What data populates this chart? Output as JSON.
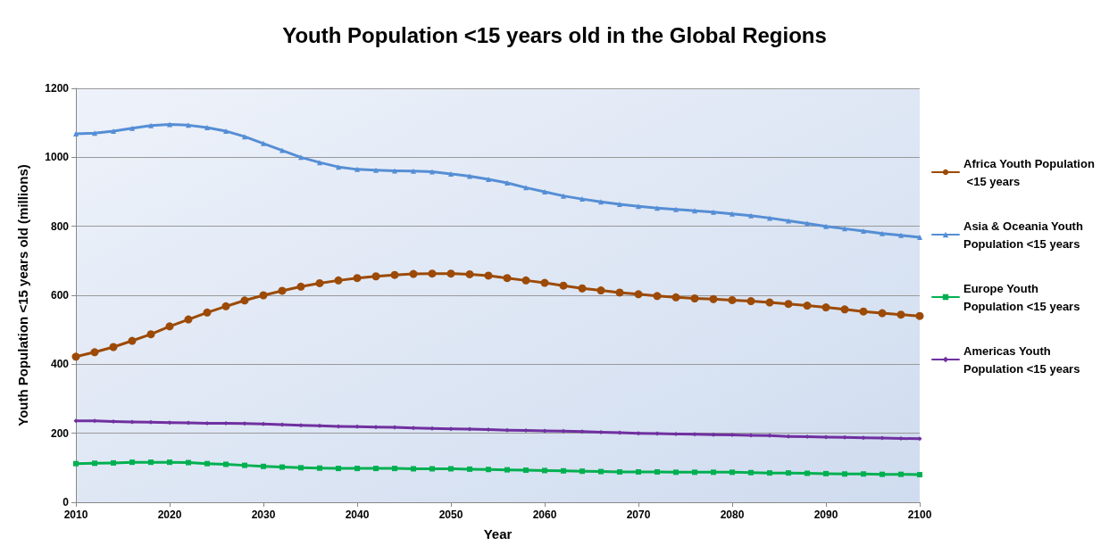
{
  "chart_data": {
    "type": "line",
    "title": "Youth Population <15 years old in the Global Regions",
    "xlabel": "Year",
    "ylabel": "Youth Population <15 years old (millions)",
    "x": [
      2010,
      2012,
      2014,
      2016,
      2018,
      2020,
      2022,
      2024,
      2026,
      2028,
      2030,
      2032,
      2034,
      2036,
      2038,
      2040,
      2042,
      2044,
      2046,
      2048,
      2050,
      2052,
      2054,
      2056,
      2058,
      2060,
      2062,
      2064,
      2066,
      2068,
      2070,
      2072,
      2074,
      2076,
      2078,
      2080,
      2082,
      2084,
      2086,
      2088,
      2090,
      2092,
      2094,
      2096,
      2098,
      2100
    ],
    "xlim": [
      2010,
      2100
    ],
    "xticks": [
      2010,
      2020,
      2030,
      2040,
      2050,
      2060,
      2070,
      2080,
      2090,
      2100
    ],
    "ylim": [
      0,
      1200
    ],
    "yticks": [
      0,
      200,
      400,
      600,
      800,
      1000,
      1200
    ],
    "grid": "y",
    "legend": "right",
    "line_style": "solid",
    "series": [
      {
        "name": "Africa Youth Population <15 years",
        "color": "#9c4a06",
        "marker": "circle",
        "values": [
          422,
          435,
          450,
          468,
          487,
          510,
          530,
          550,
          568,
          585,
          600,
          613,
          625,
          635,
          643,
          650,
          655,
          659,
          662,
          663,
          663,
          661,
          657,
          650,
          643,
          636,
          628,
          620,
          614,
          608,
          603,
          598,
          594,
          591,
          589,
          586,
          583,
          579,
          575,
          570,
          565,
          559,
          553,
          548,
          544,
          540
        ]
      },
      {
        "name": "Asia & Oceania Youth Population <15 years",
        "color": "#558ed5",
        "marker": "triangle",
        "values": [
          1068,
          1070,
          1076,
          1084,
          1092,
          1095,
          1093,
          1086,
          1076,
          1060,
          1040,
          1020,
          1000,
          985,
          972,
          965,
          963,
          961,
          960,
          958,
          952,
          945,
          936,
          926,
          912,
          900,
          888,
          879,
          871,
          864,
          858,
          853,
          849,
          845,
          841,
          836,
          831,
          824,
          816,
          808,
          800,
          793,
          786,
          779,
          774,
          768
        ]
      },
      {
        "name": "Europe Youth Population <15 years",
        "color": "#00b050",
        "marker": "square",
        "values": [
          112,
          113,
          114,
          116,
          116,
          116,
          115,
          112,
          110,
          107,
          104,
          102,
          100,
          99,
          98,
          98,
          98,
          98,
          97,
          97,
          97,
          96,
          95,
          94,
          93,
          92,
          91,
          90,
          89,
          88,
          88,
          88,
          87,
          87,
          87,
          87,
          86,
          85,
          85,
          84,
          83,
          82,
          82,
          81,
          81,
          80
        ]
      },
      {
        "name": "Americas Youth Population <15 years",
        "color": "#7030a0",
        "marker": "diamond",
        "values": [
          236,
          236,
          234,
          233,
          232,
          231,
          230,
          229,
          229,
          228,
          227,
          225,
          223,
          222,
          220,
          219,
          218,
          217,
          215,
          214,
          213,
          212,
          211,
          209,
          208,
          207,
          206,
          205,
          203,
          202,
          200,
          199,
          198,
          197,
          196,
          195,
          194,
          193,
          191,
          190,
          189,
          188,
          187,
          186,
          185,
          184
        ]
      }
    ]
  }
}
